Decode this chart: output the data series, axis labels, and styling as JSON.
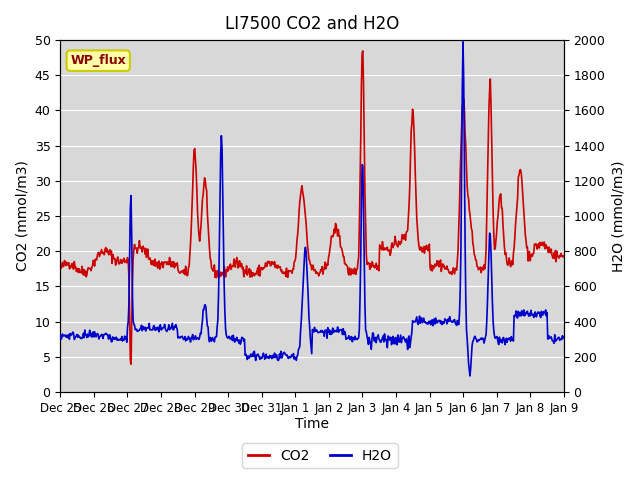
{
  "title": "LI7500 CO2 and H2O",
  "xlabel": "Time",
  "ylabel_left": "CO2 (mmol/m3)",
  "ylabel_right": "H2O (mmol/m3)",
  "ylim_left": [
    0,
    50
  ],
  "ylim_right": [
    0,
    2000
  ],
  "xtick_labels": [
    "Dec 25",
    "Dec 26",
    "Dec 27",
    "Dec 28",
    "Dec 29",
    "Dec 30",
    "Dec 31",
    "Jan 1",
    "Jan 2",
    "Jan 3",
    "Jan 4",
    "Jan 5",
    "Jan 6",
    "Jan 7",
    "Jan 8",
    "Jan 9"
  ],
  "yticks_left": [
    0,
    5,
    10,
    15,
    20,
    25,
    30,
    35,
    40,
    45,
    50
  ],
  "yticks_right": [
    0,
    200,
    400,
    600,
    800,
    1000,
    1200,
    1400,
    1600,
    1800,
    2000
  ],
  "co2_color": "#cc0000",
  "h2o_color": "#0000cc",
  "bg_color": "#e8e8e8",
  "plot_bg_color": "#d8d8d8",
  "legend_label_co2": "CO2",
  "legend_label_h2o": "H2O",
  "annotation_text": "WP_flux",
  "annotation_bg": "#ffffaa",
  "annotation_border": "#cccc00",
  "line_width": 1.2,
  "h2o_scale": 40
}
